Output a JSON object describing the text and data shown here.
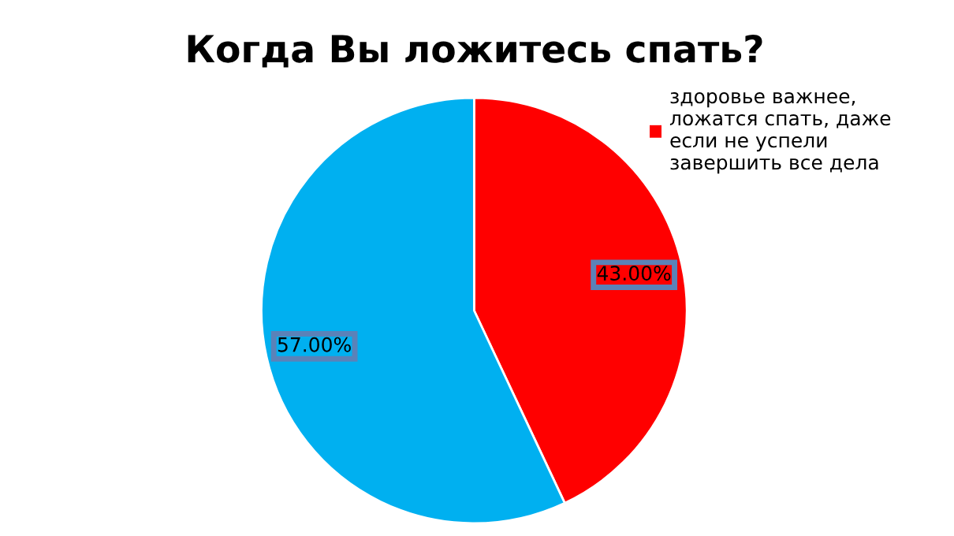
{
  "chart_data": {
    "type": "pie",
    "title": "Когда Вы ложитесь спать?",
    "categories": [
      "здоровье важнее,\nложатся спать, даже\nесли не успели\nзавершить все дела",
      null
    ],
    "values": [
      43,
      57
    ],
    "colors": [
      "#ff0000",
      "#00b0f0"
    ],
    "value_labels": [
      "43.00%",
      "57.00%"
    ],
    "legend": "top right"
  }
}
